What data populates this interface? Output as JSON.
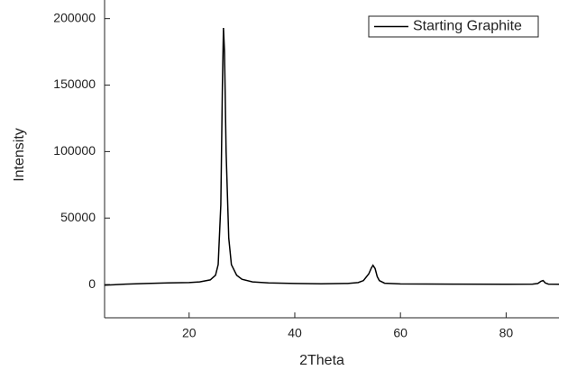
{
  "chart_data": {
    "type": "line",
    "x_label": "2Theta",
    "y_label": "Intensity",
    "x": [
      4,
      8,
      12,
      16,
      20,
      22,
      24,
      25,
      25.5,
      26,
      26.3,
      26.5,
      26.7,
      27,
      27.5,
      28,
      29,
      30,
      32,
      35,
      40,
      45,
      50,
      52,
      53,
      54,
      54.5,
      54.8,
      55.2,
      55.6,
      56,
      57,
      60,
      70,
      80,
      85,
      86,
      86.6,
      87,
      87.4,
      88,
      90
    ],
    "series": [
      {
        "name": "Starting Graphite",
        "color": "#000000",
        "values": [
          -500,
          300,
          800,
          1200,
          1500,
          2000,
          3500,
          7000,
          15000,
          60000,
          150000,
          193000,
          175000,
          100000,
          35000,
          15000,
          7000,
          4000,
          2000,
          1200,
          800,
          600,
          800,
          1500,
          3000,
          8000,
          12500,
          14500,
          12000,
          6000,
          3000,
          1000,
          500,
          300,
          200,
          300,
          800,
          2500,
          3000,
          1200,
          300,
          200
        ]
      }
    ],
    "xlim": [
      4,
      90
    ],
    "xticks": [
      20,
      40,
      60,
      80
    ],
    "ylim": [
      -25000,
      214000
    ],
    "yticks": [
      0,
      50000,
      100000,
      150000,
      200000
    ],
    "legend": "upper right"
  }
}
